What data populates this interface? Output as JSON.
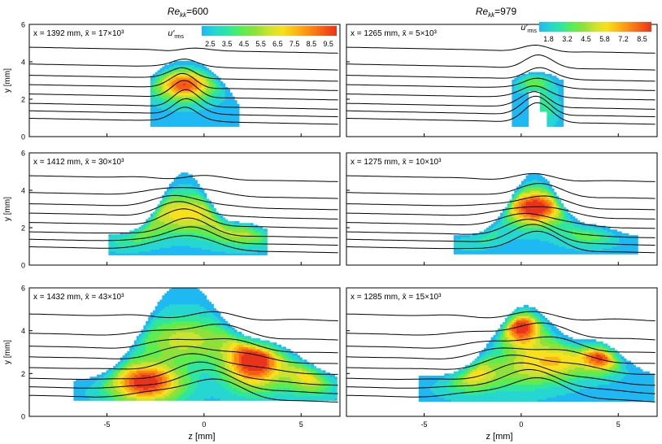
{
  "figure": {
    "column_titles": [
      {
        "main": "Re",
        "sub": "kk",
        "suffix": "=600"
      },
      {
        "main": "Re",
        "sub": "kk",
        "suffix": "=979"
      }
    ],
    "colorbar_label": {
      "main": "u′",
      "sub": "rms"
    },
    "colorbar_ticks": [
      [
        "2.5",
        "3.5",
        "4.5",
        "5.5",
        "6.5",
        "7.5",
        "8.5",
        "9.5"
      ],
      [
        "1.8",
        "3.2",
        "4.5",
        "5.8",
        "7.2",
        "8.5"
      ]
    ],
    "colors": {
      "cmap": [
        "#1fb8f2",
        "#26d6d0",
        "#2fe79c",
        "#5ced4f",
        "#8fe13a",
        "#cde22d",
        "#f7e11a",
        "#fbb713",
        "#fb8a15",
        "#f75c16",
        "#e8341a"
      ],
      "contour": "#000000",
      "axis": "#000000"
    }
  },
  "chart_data": {
    "type": "heatmap",
    "xlabel": "z [mm]",
    "ylabel": "y [mm]",
    "xlim": [
      -9,
      7
    ],
    "ylim": [
      0,
      6
    ],
    "xticks": [
      "-5",
      "0",
      "5"
    ],
    "yticks": [
      "0",
      "2",
      "4",
      "6"
    ],
    "panels": [
      {
        "col": 0,
        "row": 0,
        "label": "x = 1392 mm, x̄ = 17×10³",
        "x_mm": 1392,
        "xbar": "17×10³",
        "Re_kk": 600,
        "spots": [
          [
            -1.0,
            2.8,
            1.4,
            0.8,
            0.85
          ]
        ]
      },
      {
        "col": 0,
        "row": 1,
        "label": "x = 1412 mm, x̄ = 30×10³",
        "x_mm": 1412,
        "xbar": "30×10³",
        "Re_kk": 600,
        "spots": [
          [
            -1.0,
            2.8,
            2.3,
            1.0,
            0.55
          ],
          [
            -4.0,
            1.8,
            1.5,
            0.7,
            0.4
          ],
          [
            2.0,
            1.8,
            1.7,
            0.7,
            0.45
          ]
        ]
      },
      {
        "col": 0,
        "row": 2,
        "label": "x = 1432 mm, x̄ = 43×10³",
        "x_mm": 1432,
        "xbar": "43×10³",
        "Re_kk": 600,
        "spots": [
          [
            -3.0,
            1.6,
            1.8,
            0.9,
            0.95
          ],
          [
            2.6,
            2.6,
            1.5,
            1.2,
            1.0
          ],
          [
            -1.0,
            3.6,
            2.2,
            1.0,
            0.45
          ],
          [
            5.5,
            1.9,
            1.2,
            0.8,
            0.55
          ]
        ]
      },
      {
        "col": 1,
        "row": 0,
        "label": "x = 1265 mm, x̄ = 5×10³",
        "x_mm": 1265,
        "xbar": "5×10³",
        "Re_kk": 979,
        "spots": [
          [
            0.6,
            3.1,
            1.0,
            0.5,
            0.4
          ],
          [
            1.2,
            1.6,
            0.6,
            0.9,
            0.2
          ]
        ]
      },
      {
        "col": 1,
        "row": 1,
        "label": "x = 1275 mm, x̄ = 10×10³",
        "x_mm": 1275,
        "xbar": "10×10³",
        "Re_kk": 979,
        "spots": [
          [
            0.7,
            3.1,
            1.4,
            0.9,
            1.0
          ],
          [
            -2.5,
            1.7,
            1.3,
            0.6,
            0.3
          ],
          [
            3.5,
            1.7,
            1.4,
            0.6,
            0.3
          ]
        ]
      },
      {
        "col": 1,
        "row": 2,
        "label": "x = 1285 mm, x̄ = 15×10³",
        "x_mm": 1285,
        "xbar": "15×10³",
        "Re_kk": 979,
        "spots": [
          [
            0.0,
            4.2,
            1.0,
            0.8,
            0.9
          ],
          [
            4.1,
            2.8,
            1.0,
            0.7,
            0.85
          ],
          [
            -2.5,
            2.0,
            1.6,
            0.8,
            0.55
          ],
          [
            2.0,
            2.6,
            1.3,
            0.9,
            0.5
          ],
          [
            0.3,
            2.5,
            1.3,
            1.1,
            0.4
          ]
        ]
      }
    ]
  }
}
